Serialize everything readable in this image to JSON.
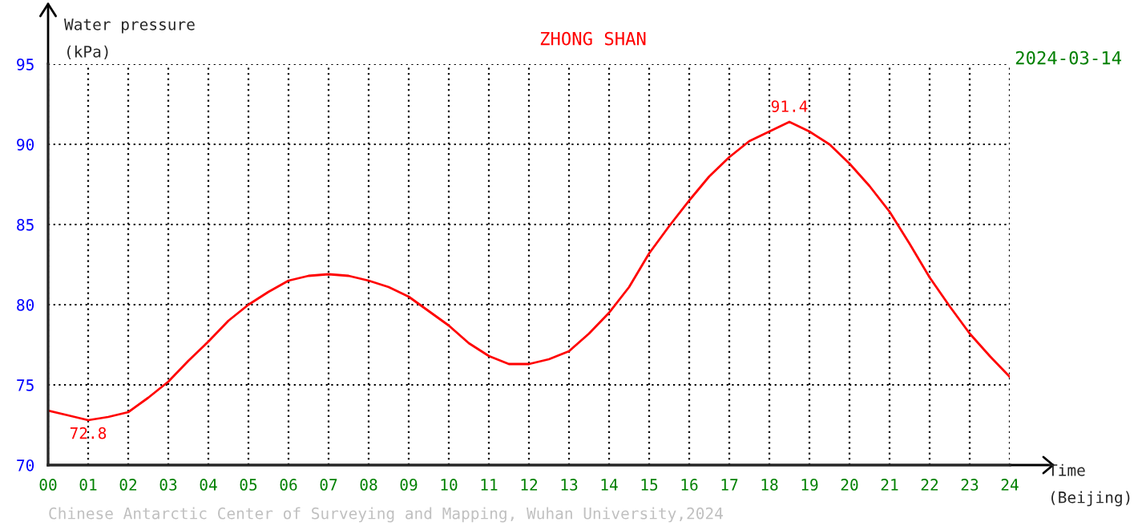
{
  "chart_data": {
    "type": "line",
    "title": "ZHONG SHAN",
    "subtitle": "2024-03-14",
    "ylabel": "Water pressure\n(kPa)",
    "xlabel": "Time\n(Beijing)",
    "annotations": [
      {
        "text": "72.8",
        "x": 1,
        "y": 72.8
      },
      {
        "text": "91.4",
        "x": 18.5,
        "y": 91.4
      },
      "Chinese Antarctic Center of Surveying and Mapping, Wuhan University,2024"
    ],
    "x": [
      0,
      0.5,
      1,
      1.5,
      2,
      2.5,
      3,
      3.5,
      4,
      4.5,
      5,
      5.5,
      6,
      6.5,
      7,
      7.5,
      8,
      8.5,
      9,
      9.5,
      10,
      10.5,
      11,
      11.5,
      12,
      12.5,
      13,
      13.5,
      14,
      14.5,
      15,
      15.5,
      16,
      16.5,
      17,
      17.5,
      18,
      18.5,
      19,
      19.5,
      20,
      20.5,
      21,
      21.5,
      22,
      22.5,
      23,
      23.5,
      24
    ],
    "series": [
      {
        "color": "#ff0000",
        "values": [
          73.4,
          73.1,
          72.8,
          73.0,
          73.3,
          74.2,
          75.2,
          76.5,
          77.7,
          79.0,
          80.0,
          80.8,
          81.5,
          81.8,
          81.9,
          81.8,
          81.5,
          81.1,
          80.5,
          79.6,
          78.7,
          77.6,
          76.8,
          76.3,
          76.3,
          76.6,
          77.1,
          78.2,
          79.5,
          81.1,
          83.2,
          84.9,
          86.5,
          88.0,
          89.2,
          90.2,
          90.8,
          91.4,
          90.8,
          90.0,
          88.8,
          87.4,
          85.8,
          83.8,
          81.7,
          79.9,
          78.2,
          76.8,
          75.5
        ]
      }
    ],
    "xlim": [
      0,
      24
    ],
    "ylim": [
      70,
      95
    ],
    "xticks": [
      {
        "value": 0,
        "label": "00"
      },
      {
        "value": 1,
        "label": "01"
      },
      {
        "value": 2,
        "label": "02"
      },
      {
        "value": 3,
        "label": "03"
      },
      {
        "value": 4,
        "label": "04"
      },
      {
        "value": 5,
        "label": "05"
      },
      {
        "value": 6,
        "label": "06"
      },
      {
        "value": 7,
        "label": "07"
      },
      {
        "value": 8,
        "label": "08"
      },
      {
        "value": 9,
        "label": "09"
      },
      10,
      11,
      12,
      13,
      14,
      15,
      16,
      17,
      18,
      19,
      20,
      21,
      22,
      23,
      24
    ],
    "yticks": [
      70,
      75,
      80,
      85,
      90,
      95
    ],
    "grid": true,
    "marker": "none",
    "line_style": "solid"
  }
}
